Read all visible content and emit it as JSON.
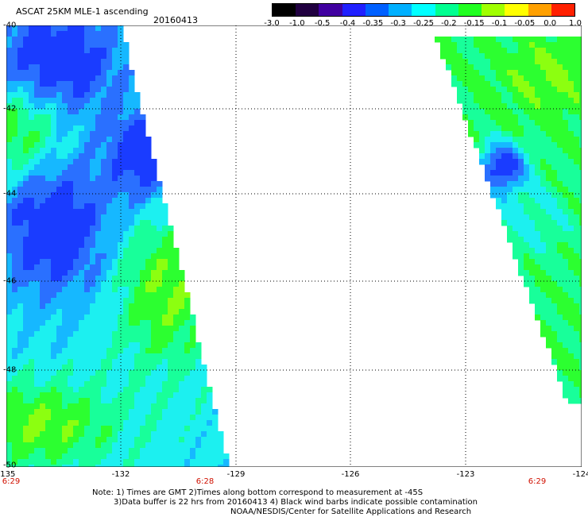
{
  "header": {
    "title": "ASCAT 25KM MLE-1 ascending",
    "date": "20160413"
  },
  "colorbar": {
    "labels": [
      "-3.0",
      "-1.0",
      "-0.5",
      "-0.4",
      "-0.35",
      "-0.3",
      "-0.25",
      "-0.2",
      "-0.15",
      "-0.1",
      "-0.05",
      "0.0",
      "1.0"
    ],
    "colors": [
      "#000000",
      "#200040",
      "#4000a0",
      "#2020ff",
      "#0060ff",
      "#00b0ff",
      "#00ffff",
      "#00ff90",
      "#20ff20",
      "#a0ff00",
      "#ffff00",
      "#ffa000",
      "#ff2000"
    ]
  },
  "axes": {
    "x_ticks": [
      "-135",
      "-132",
      "-129",
      "-126",
      "-123",
      "-124"
    ],
    "y_ticks": [
      "-40",
      "-42",
      "-44",
      "-46",
      "-48",
      "-50"
    ],
    "times": [
      "6:29",
      "6:28",
      "6:29"
    ]
  },
  "notes": {
    "line1": "Note: 1) Times are GMT 2)Times along bottom correspond to measurement at -45S",
    "line2": "3)Data buffer is 22 hrs from 20160413 4) Black wind barbs indicate possible contamination",
    "line3": "NOAA/NESDIS/Center for Satellite Applications and Research"
  },
  "map_data": {
    "lon_range": [
      -135,
      -121
    ],
    "lat_range": [
      -50,
      -40
    ],
    "swaths": [
      {
        "name": "west",
        "lon_west": -135,
        "east_edge_top_lon": -132.1,
        "east_edge_bottom_lon": -129.4
      },
      {
        "name": "east",
        "west_edge_top_lon": -124.2,
        "west_edge_bottom_lon": -121.2
      }
    ]
  }
}
